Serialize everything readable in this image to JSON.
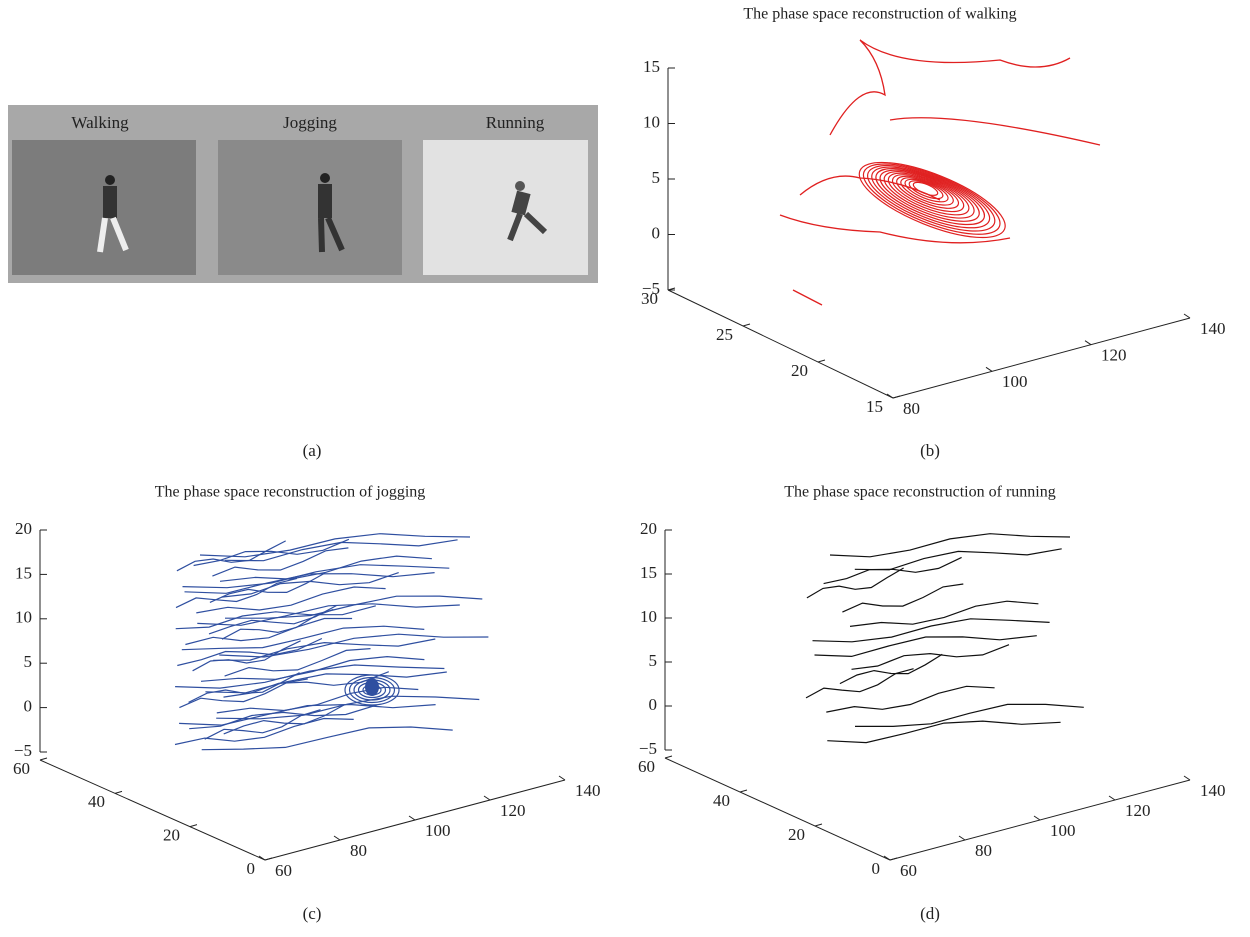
{
  "panel_a": {
    "labels": [
      "Walking",
      "Jogging",
      "Running"
    ],
    "caption": "(a)"
  },
  "panel_b": {
    "title": "The phase space reconstruction of walking",
    "zticks": [
      {
        "value": -5,
        "label": "−5"
      },
      0,
      5,
      10,
      15
    ],
    "yticks": [
      15,
      20,
      25,
      30
    ],
    "xticks": [
      80,
      100,
      120,
      140
    ],
    "color": "#e02020",
    "caption": "(b)"
  },
  "panel_c": {
    "title": "The phase space reconstruction of jogging",
    "zticks": [
      {
        "value": -5,
        "label": "−5"
      },
      0,
      5,
      10,
      15,
      20
    ],
    "yticks": [
      0,
      20,
      40,
      60
    ],
    "xticks": [
      60,
      80,
      100,
      120,
      140
    ],
    "color": "#2f4fa0",
    "caption": "(c)"
  },
  "panel_d": {
    "title": "The phase space reconstruction of running",
    "zticks": [
      {
        "value": -5,
        "label": "−5"
      },
      0,
      5,
      10,
      15,
      20
    ],
    "yticks": [
      0,
      20,
      40,
      60
    ],
    "xticks": [
      60,
      80,
      100,
      120,
      140
    ],
    "color": "#111111",
    "caption": "(d)"
  }
}
